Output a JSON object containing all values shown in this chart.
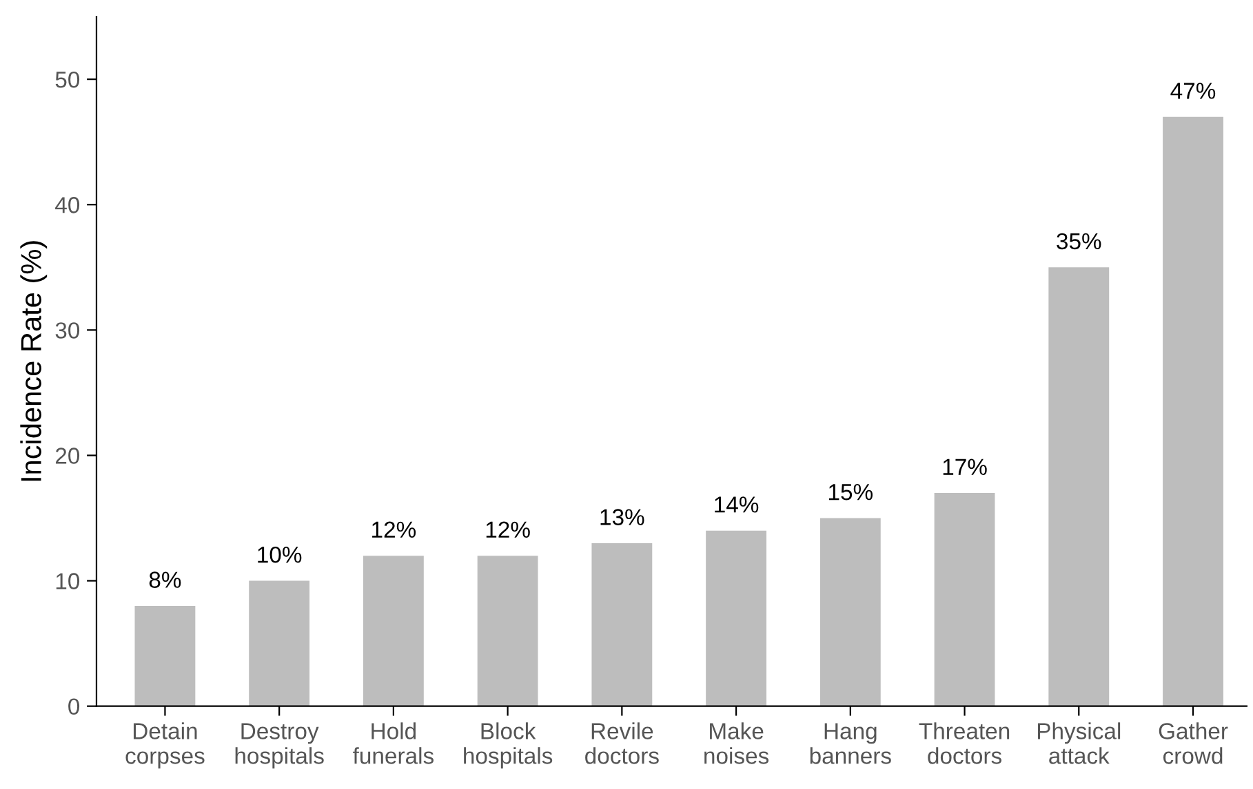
{
  "chart_data": {
    "type": "bar",
    "ylabel": "Incidence Rate (%)",
    "categories": [
      "Detain\ncorpses",
      "Destroy\nhospitals",
      "Hold\nfunerals",
      "Block\nhospitals",
      "Revile\ndoctors",
      "Make\nnoises",
      "Hang\nbanners",
      "Threaten\ndoctors",
      "Physical\nattack",
      "Gather\ncrowd"
    ],
    "values": [
      8,
      10,
      12,
      12,
      13,
      14,
      15,
      17,
      35,
      47
    ],
    "value_labels": [
      "8%",
      "10%",
      "12%",
      "12%",
      "13%",
      "14%",
      "15%",
      "17%",
      "35%",
      "47%"
    ],
    "color": "#bdbdbd",
    "ylim": [
      0,
      55
    ],
    "yticks": [
      0,
      10,
      20,
      30,
      40,
      50
    ],
    "grid": false,
    "legend": false
  }
}
